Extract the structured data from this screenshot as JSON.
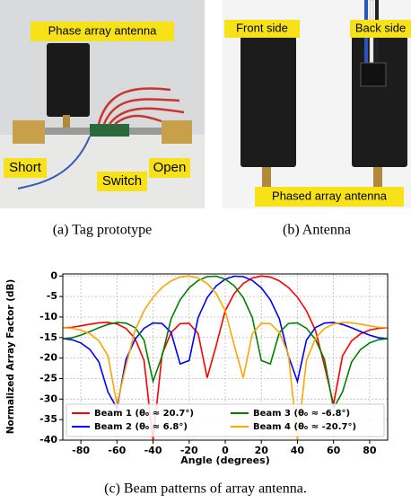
{
  "panel_a": {
    "labels": [
      "Phase array antenna",
      "Short",
      "Switch",
      "Open"
    ],
    "caption": "(a) Tag prototype"
  },
  "panel_b": {
    "labels": [
      "Front side",
      "Back side",
      "Phased array antenna"
    ],
    "caption": "(b) Antenna"
  },
  "chart_data": {
    "type": "line",
    "caption": "(c) Beam patterns of array antenna.",
    "xlabel": "Angle (degrees)",
    "ylabel": "Normalized Array Factor (dB)",
    "x": [
      -90,
      -85,
      -80,
      -75,
      -70,
      -65,
      -60,
      -55,
      -50,
      -45,
      -40,
      -35,
      -30,
      -25,
      -20,
      -15,
      -10,
      -5,
      0,
      5,
      10,
      15,
      20,
      25,
      30,
      35,
      40,
      45,
      50,
      55,
      60,
      65,
      70,
      75,
      80,
      85,
      90
    ],
    "series": [
      {
        "name": "Beam 1 (θ₀ ≈ 20.7°)",
        "color": "#ff0000",
        "values": [
          -12.62,
          -12.5,
          -12.16,
          -11.75,
          -11.41,
          -11.31,
          -11.68,
          -12.78,
          -15.21,
          -20.6,
          -40,
          -19.07,
          -13.79,
          -11.61,
          -11.53,
          -14.08,
          -24.8,
          -16.93,
          -8.47,
          -4.26,
          -1.82,
          -0.49,
          -0.01,
          -0.25,
          -1.19,
          -2.8,
          -5.16,
          -8.47,
          -13.28,
          -21.93,
          -31.31,
          -19.44,
          -15.82,
          -14.08,
          -13.18,
          -12.74,
          -12.61
        ]
      },
      {
        "name": "Beam 2 (θ₀ ≈ 6.8°)",
        "color": "#0000ff",
        "values": [
          -15.28,
          -15.52,
          -16.31,
          -17.9,
          -20.95,
          -28.25,
          -32.23,
          -20.36,
          -15.45,
          -12.73,
          -11.44,
          -11.57,
          -13.77,
          -21.43,
          -20.61,
          -10.11,
          -5.27,
          -2.41,
          -0.77,
          -0.05,
          -0.16,
          -1.09,
          -2.89,
          -5.8,
          -10.46,
          -19.49,
          -25.68,
          -15.62,
          -12.57,
          -11.47,
          -11.34,
          -11.8,
          -12.6,
          -13.53,
          -14.41,
          -15.05,
          -15.28
        ]
      },
      {
        "name": "Beam 3 (θ₀ ≈ -6.8°)",
        "color": "#008000",
        "values": [
          -15.28,
          -15.05,
          -14.41,
          -13.53,
          -12.6,
          -11.8,
          -11.34,
          -11.47,
          -12.57,
          -15.62,
          -25.68,
          -19.49,
          -10.46,
          -5.8,
          -2.89,
          -1.09,
          -0.16,
          -0.05,
          -0.77,
          -2.41,
          -5.27,
          -10.11,
          -20.61,
          -21.43,
          -13.77,
          -11.57,
          -11.44,
          -12.73,
          -15.45,
          -20.36,
          -32.23,
          -28.25,
          -20.95,
          -17.9,
          -16.31,
          -15.52,
          -15.28
        ]
      },
      {
        "name": "Beam 4 (θ₀ ≈ -20.7°)",
        "color": "#ffa500",
        "values": [
          -12.61,
          -12.74,
          -13.18,
          -14.08,
          -15.82,
          -19.44,
          -31.31,
          -21.93,
          -13.28,
          -8.47,
          -5.16,
          -2.8,
          -1.19,
          -0.25,
          -0.01,
          -0.49,
          -1.82,
          -4.26,
          -8.47,
          -16.93,
          -24.8,
          -14.08,
          -11.53,
          -11.61,
          -13.79,
          -19.07,
          -40,
          -20.6,
          -15.21,
          -12.78,
          -11.68,
          -11.31,
          -11.41,
          -11.75,
          -12.16,
          -12.5,
          -12.62
        ]
      }
    ],
    "xlim": [
      -90,
      90
    ],
    "xticks": [
      -80,
      -60,
      -40,
      -20,
      0,
      20,
      40,
      60,
      80
    ],
    "ylim": [
      -40,
      0.5
    ],
    "yticks": [
      0,
      -5,
      -10,
      -15,
      -20,
      -25,
      -30,
      -35,
      -40
    ],
    "grid": true,
    "legend": "lower left",
    "legend_columns": 2
  }
}
